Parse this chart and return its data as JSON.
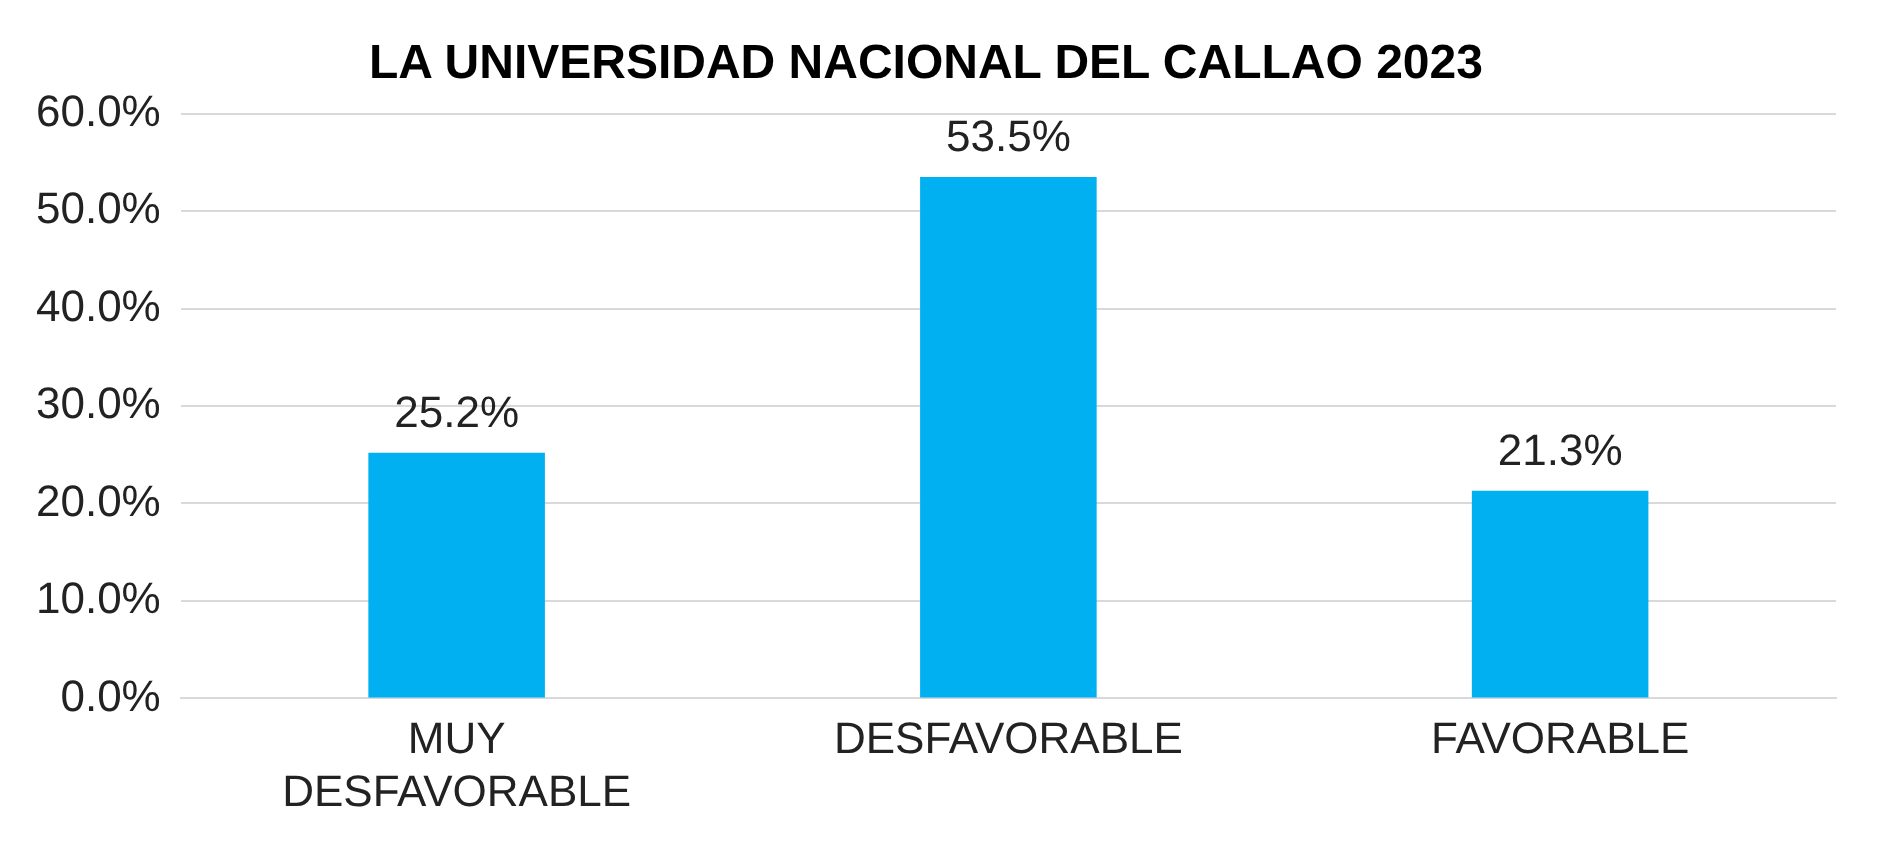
{
  "chart_data": {
    "type": "bar",
    "title": "LA UNIVERSIDAD NACIONAL DEL CALLAO 2023",
    "categories": [
      "MUY DESFAVORABLE",
      "DESFAVORABLE",
      "FAVORABLE"
    ],
    "values": [
      25.2,
      53.5,
      21.3
    ],
    "color": "#00b0f0",
    "value_labels": [
      "25.2%",
      "53.5%",
      "21.3%"
    ],
    "ylim": [
      0,
      60
    ],
    "yticks": [
      {
        "value": 0,
        "label": "0.0%"
      },
      {
        "value": 10,
        "label": "10.0%"
      },
      {
        "value": 20,
        "label": "20.0%"
      },
      {
        "value": 30,
        "label": "30.0%"
      },
      {
        "value": 40,
        "label": "40.0%"
      },
      {
        "value": 50,
        "label": "50.0%"
      },
      {
        "value": 60,
        "label": "60.0%"
      }
    ],
    "grid": "y",
    "legend": false
  }
}
